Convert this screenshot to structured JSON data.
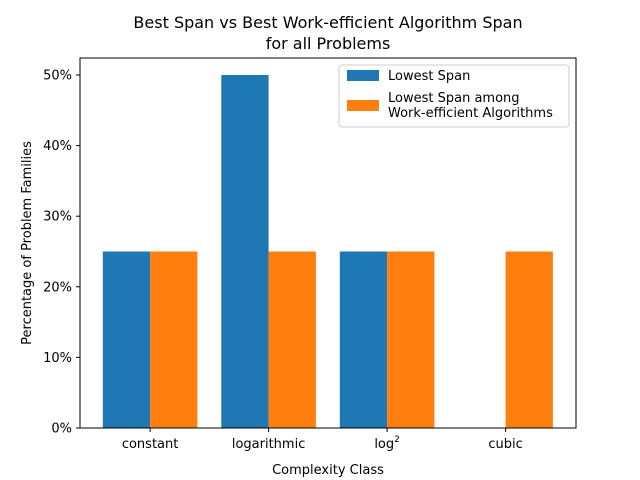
{
  "chart_data": {
    "type": "bar",
    "title_lines": [
      "Best Span vs Best Work-efficient Algorithm Span",
      "for all Problems"
    ],
    "xlabel": "Complexity Class",
    "ylabel": "Percentage of Problem Families",
    "categories": [
      {
        "label": "constant",
        "sup": ""
      },
      {
        "label": "logarithmic",
        "sup": ""
      },
      {
        "label": "log",
        "sup": "2"
      },
      {
        "label": "cubic",
        "sup": ""
      }
    ],
    "series": [
      {
        "name": "Lowest Span",
        "color": "#1f77b4",
        "values": [
          25,
          50,
          25,
          0
        ]
      },
      {
        "name": "Lowest Span among\nWork-efficient Algorithms",
        "color": "#ff7f0e",
        "values": [
          25,
          25,
          25,
          25
        ]
      }
    ],
    "ylim": [
      0,
      50
    ],
    "yticks": [
      0,
      10,
      20,
      30,
      40,
      50
    ],
    "ytick_suffix": "%",
    "grid": false,
    "legend_position": "top-right"
  }
}
